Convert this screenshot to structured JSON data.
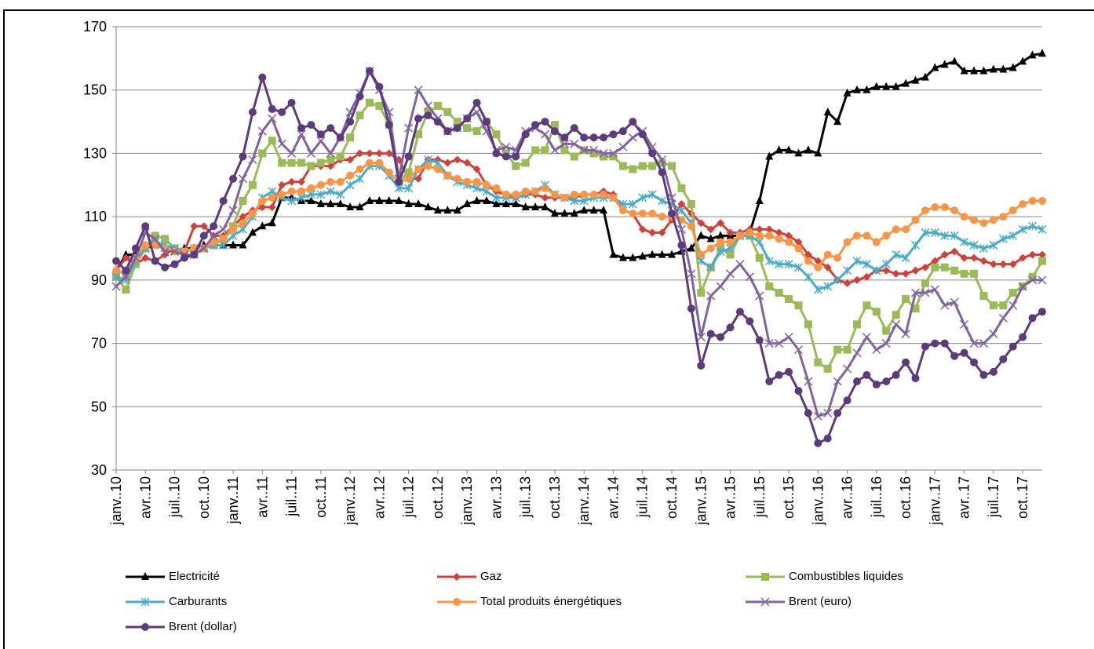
{
  "chart_data": {
    "type": "line",
    "categories": [
      "janv..10",
      null,
      null,
      "avr..10",
      null,
      null,
      "juil..10",
      null,
      null,
      "oct..10",
      null,
      null,
      "janv..11",
      null,
      null,
      "avr..11",
      null,
      null,
      "juil..11",
      null,
      null,
      "oct..11",
      null,
      null,
      "janv..12",
      null,
      null,
      "avr..12",
      null,
      null,
      "juil..12",
      null,
      null,
      "oct..12",
      null,
      null,
      "janv..13",
      null,
      null,
      "avr..13",
      null,
      null,
      "juil..13",
      null,
      null,
      "oct..13",
      null,
      null,
      "janv..14",
      null,
      null,
      "avr..14",
      null,
      null,
      "juil..14",
      null,
      null,
      "oct..14",
      null,
      null,
      "janv..15",
      null,
      null,
      "avr..15",
      null,
      null,
      "juil..15",
      null,
      null,
      "oct..15",
      null,
      null,
      "janv..16",
      null,
      null,
      "avr..16",
      null,
      null,
      "juil..16",
      null,
      null,
      "oct..16",
      null,
      null,
      "janv..17",
      null,
      null,
      "avr..17",
      null,
      null,
      "juil..17",
      null,
      null,
      "oct..17",
      null,
      null
    ],
    "ylim": [
      30,
      170
    ],
    "yticks": [
      30,
      50,
      70,
      90,
      110,
      130,
      150,
      170
    ],
    "grid": true,
    "legend": "bottom",
    "series": [
      {
        "name": "Electricité",
        "color": "#000000",
        "marker": "triangle",
        "values": [
          93,
          98,
          98,
          100,
          101,
          100,
          99,
          100,
          100,
          101,
          101,
          101,
          101,
          101,
          105,
          107,
          108,
          116,
          116,
          115,
          115,
          114,
          114,
          114,
          113,
          113,
          115,
          115,
          115,
          115,
          114,
          114,
          113,
          112,
          112,
          112,
          114,
          115,
          115,
          114,
          114,
          114,
          113,
          113,
          113,
          111,
          111,
          111,
          112,
          112,
          112,
          98,
          97,
          97,
          97.5,
          98,
          98,
          98,
          99,
          100,
          104,
          103,
          104,
          104,
          104,
          105,
          115,
          129,
          131,
          131,
          130,
          131,
          130,
          143,
          140,
          149,
          150,
          150,
          151,
          151,
          151,
          152,
          153,
          154,
          157,
          158,
          159,
          156,
          156,
          156,
          156.5,
          156.5,
          157,
          159,
          161,
          161.5
        ]
      },
      {
        "name": "Gaz",
        "color": "#d0413a",
        "marker": "diamond",
        "values": [
          93,
          97,
          95,
          97,
          96,
          98,
          100,
          99,
          107,
          107,
          104,
          104,
          107,
          110,
          112,
          113,
          113,
          120,
          121,
          121,
          126,
          126,
          126,
          128,
          128,
          130,
          130,
          130,
          130,
          128,
          122,
          122,
          128,
          128,
          127,
          128,
          127,
          125,
          120,
          118,
          117,
          116,
          117,
          117,
          116,
          116,
          116,
          116,
          117,
          117,
          118,
          117,
          112,
          111,
          106,
          105,
          105,
          109,
          114,
          111,
          108,
          106,
          108,
          105,
          105,
          106,
          106,
          106,
          105,
          104,
          102,
          98,
          96,
          94,
          90,
          89,
          90,
          91,
          93,
          93,
          92,
          92,
          93,
          94,
          96,
          98,
          99,
          97,
          97,
          96,
          95,
          95,
          95,
          97,
          98,
          98
        ]
      },
      {
        "name": "Combustibles liquides",
        "color": "#9bbb59",
        "marker": "square",
        "values": [
          91,
          87,
          95,
          100,
          104,
          103,
          100,
          99,
          100,
          100,
          101,
          103,
          107,
          115,
          120,
          130,
          134,
          127,
          127,
          127,
          126,
          127,
          128,
          129,
          135,
          142,
          146,
          145,
          139,
          121,
          124,
          136,
          143,
          145,
          143,
          140,
          138,
          137,
          140,
          136,
          130,
          126,
          127,
          131,
          131,
          139,
          131,
          129,
          131,
          130,
          129,
          129,
          126,
          125,
          126,
          126,
          127,
          126,
          119,
          114,
          86,
          94,
          100,
          98,
          104,
          104,
          97,
          88,
          86,
          84,
          82,
          76,
          64,
          62,
          68,
          68,
          76,
          82,
          80,
          74,
          79,
          84,
          81,
          89,
          94,
          94,
          93,
          92,
          92,
          85,
          82,
          82,
          86,
          88,
          91,
          96
        ]
      },
      {
        "name": "Carburants",
        "color": "#4bacc6",
        "marker": "star",
        "values": [
          91,
          90,
          96,
          100,
          102,
          101,
          100,
          99,
          100,
          100,
          101,
          101,
          104,
          106,
          110,
          116,
          118,
          116,
          115,
          116,
          117,
          117,
          118,
          117,
          120,
          122,
          126,
          126,
          123,
          119,
          119,
          125,
          128,
          127,
          123,
          121,
          120,
          119,
          118,
          116,
          116,
          116,
          117,
          118,
          120,
          117,
          116,
          115,
          115,
          116,
          116,
          116,
          114,
          114,
          116,
          117,
          115,
          114,
          112,
          108,
          96,
          94,
          99,
          100,
          104,
          104,
          102,
          96,
          95,
          95,
          94,
          91,
          87,
          88,
          90,
          93,
          96,
          95,
          93,
          95,
          98,
          97,
          101,
          105,
          105,
          104,
          104,
          102,
          101,
          100,
          101,
          103,
          104,
          106,
          107,
          106
        ]
      },
      {
        "name": "Total produits énergétiques",
        "color": "#f79646",
        "marker": "circle",
        "values": [
          93,
          92,
          97,
          101,
          101,
          100,
          99,
          99,
          100,
          100,
          102,
          103,
          106,
          108,
          111,
          115,
          116,
          117,
          118,
          118,
          119,
          120,
          121,
          121,
          123,
          125,
          127,
          127,
          124,
          121,
          122,
          125,
          126,
          125,
          123,
          122,
          121,
          121,
          120,
          119,
          117,
          117,
          118,
          118,
          119,
          117,
          116,
          117,
          117,
          117,
          117,
          116,
          112,
          111,
          111,
          111,
          110,
          110,
          109,
          107,
          98,
          100,
          102,
          102,
          104,
          105,
          104,
          104,
          103,
          102,
          100,
          96,
          94,
          98,
          97,
          102,
          104,
          104,
          102,
          104,
          106,
          106,
          109,
          112,
          113,
          113,
          112,
          110,
          109,
          108,
          109,
          110,
          112,
          114,
          115,
          115
        ]
      },
      {
        "name": "Brent (euro)",
        "color": "#8064a2",
        "marker": "cross",
        "values": [
          88,
          91,
          97,
          105,
          103,
          99,
          99,
          98,
          98,
          100,
          104,
          106,
          112,
          122,
          128,
          137,
          141,
          133,
          130,
          136,
          130,
          134,
          130,
          135,
          143,
          149,
          156,
          150,
          143,
          122,
          138,
          150,
          145,
          141,
          137,
          138,
          141,
          143,
          137,
          131,
          132,
          131,
          137,
          138,
          136,
          131,
          133,
          133,
          131,
          131,
          130,
          130,
          132,
          135,
          137,
          132,
          128,
          116,
          106,
          92,
          72,
          85,
          88,
          92,
          95,
          91,
          85,
          70,
          70,
          72,
          68,
          58,
          47,
          48,
          58,
          62,
          67,
          72,
          68,
          70,
          76,
          73,
          86,
          86,
          87,
          82,
          83,
          76,
          70,
          70,
          73,
          78,
          82,
          88,
          90,
          90
        ]
      },
      {
        "name": "Brent (dollar)",
        "color": "#5c3b7d",
        "marker": "circle",
        "values": [
          96,
          93,
          100,
          107,
          96,
          94,
          95,
          97,
          98,
          104,
          107,
          115,
          122,
          129,
          143,
          154,
          144,
          143,
          146,
          138,
          139,
          136,
          138,
          135,
          140,
          148,
          156,
          151,
          139,
          121,
          129,
          141,
          142,
          140,
          137,
          138,
          141,
          146,
          140,
          130,
          129,
          129,
          136,
          139,
          140,
          137,
          135,
          138,
          135,
          135,
          135,
          136,
          137,
          140,
          136,
          130,
          124,
          111,
          101,
          81,
          63,
          73,
          72,
          75,
          80,
          77,
          71,
          58,
          60,
          61,
          55,
          48,
          38.5,
          40,
          48,
          52,
          58,
          60,
          57,
          58,
          60,
          64,
          59,
          69,
          70,
          70,
          66,
          67,
          64,
          60,
          61,
          65,
          69,
          72,
          78,
          80
        ]
      }
    ]
  }
}
